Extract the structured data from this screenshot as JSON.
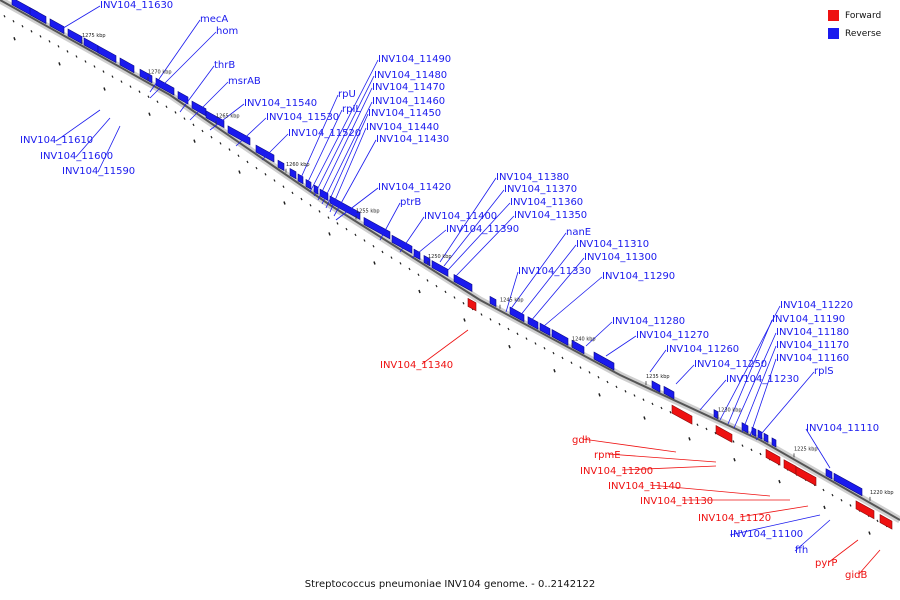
{
  "caption": "Streptococcus pneumoniae INV104 genome. - 0..2142122",
  "legend": {
    "forward_label": "Forward",
    "reverse_label": "Reverse",
    "forward_color": "#ee1111",
    "reverse_color": "#1a1aee"
  },
  "scale_labels": [
    "1275 kbp",
    "1270 kbp",
    "1265 kbp",
    "1260 kbp",
    "1255 kbp",
    "1250 kbp",
    "1245 kbp",
    "1240 kbp",
    "1235 kbp",
    "1230 kbp",
    "1225 kbp",
    "1220 kbp"
  ],
  "reverse_genes": [
    "INV104_11630",
    "mecA",
    "hom",
    "thrB",
    "msrAB",
    "INV104_11540",
    "INV104_11530",
    "INV104_11520",
    "rpU",
    "rpIL",
    "INV104_11490",
    "INV104_11480",
    "INV104_11470",
    "INV104_11460",
    "INV104_11450",
    "INV104_11440",
    "INV104_11430",
    "INV104_11610",
    "INV104_11600",
    "INV104_11590",
    "INV104_11420",
    "ptrB",
    "INV104_11400",
    "INV104_11390",
    "INV104_11380",
    "INV104_11370",
    "INV104_11360",
    "INV104_11350",
    "nanE",
    "INV104_11310",
    "INV104_11300",
    "INV104_11330",
    "INV104_11290",
    "INV104_11280",
    "INV104_11270",
    "INV104_11260",
    "INV104_11250",
    "INV104_11220",
    "INV104_11190",
    "INV104_11180",
    "INV104_11170",
    "INV104_11160",
    "rplS",
    "INV104_11230",
    "INV104_11110",
    "INV104_11100",
    "ffh"
  ],
  "forward_genes": [
    "INV104_11340",
    "gdh",
    "rpmE",
    "INV104_11200",
    "INV104_11140",
    "INV104_11130",
    "INV104_11120",
    "pyrP",
    "gidB"
  ]
}
